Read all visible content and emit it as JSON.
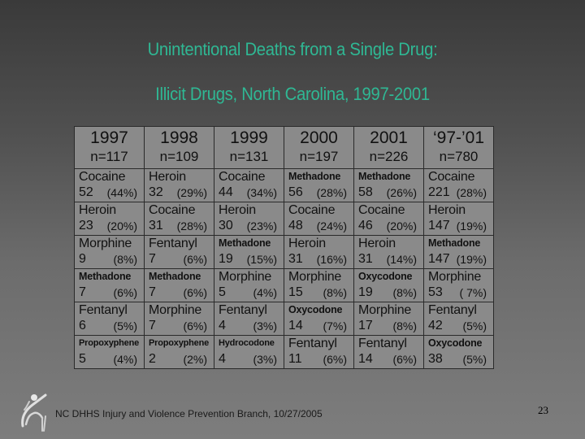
{
  "title": {
    "line1": "Unintentional Deaths from a Single Drug:",
    "line2": "Illicit Drugs, North Carolina, 1997-2001"
  },
  "colors": {
    "title": "#2fb894",
    "illicit_highlight": "#2222dd",
    "text": "#111111"
  },
  "table": {
    "columns": [
      {
        "year": "1997",
        "n": "n=117"
      },
      {
        "year": "1998",
        "n": "n=109"
      },
      {
        "year": "1999",
        "n": "n=131"
      },
      {
        "year": "2000",
        "n": "n=197"
      },
      {
        "year": "2001",
        "n": "n=226"
      },
      {
        "year": "‘97-’01",
        "n": "n=780"
      }
    ],
    "rows": [
      [
        {
          "drug": "Cocaine",
          "count": "52",
          "pct": "(44%)",
          "illicit": true
        },
        {
          "drug": "Heroin",
          "count": "32",
          "pct": "(29%)",
          "illicit": true
        },
        {
          "drug": "Cocaine",
          "count": "44",
          "pct": "(34%)",
          "illicit": true
        },
        {
          "drug": "Methadone",
          "count": "56",
          "pct": "(28%)",
          "illicit": false
        },
        {
          "drug": "Methadone",
          "count": "58",
          "pct": "(26%)",
          "illicit": false
        },
        {
          "drug": "Cocaine",
          "count": "221",
          "pct": "(28%)",
          "illicit": true
        }
      ],
      [
        {
          "drug": "Heroin",
          "count": "23",
          "pct": "(20%)",
          "illicit": true
        },
        {
          "drug": "Cocaine",
          "count": "31",
          "pct": "(28%)",
          "illicit": true
        },
        {
          "drug": "Heroin",
          "count": "30",
          "pct": "(23%)",
          "illicit": true
        },
        {
          "drug": "Cocaine",
          "count": "48",
          "pct": "(24%)",
          "illicit": true
        },
        {
          "drug": "Cocaine",
          "count": "46",
          "pct": "(20%)",
          "illicit": true
        },
        {
          "drug": "Heroin",
          "count": "147",
          "pct": "(19%)",
          "illicit": true
        }
      ],
      [
        {
          "drug": "Morphine",
          "count": "9",
          "pct": "(8%)",
          "illicit": false
        },
        {
          "drug": "Fentanyl",
          "count": "7",
          "pct": "(6%)",
          "illicit": false
        },
        {
          "drug": "Methadone",
          "count": "19",
          "pct": "(15%)",
          "illicit": false
        },
        {
          "drug": "Heroin",
          "count": "31",
          "pct": "(16%)",
          "illicit": true
        },
        {
          "drug": "Heroin",
          "count": "31",
          "pct": "(14%)",
          "illicit": true
        },
        {
          "drug": "Methadone",
          "count": "147",
          "pct": "(19%)",
          "illicit": false
        }
      ],
      [
        {
          "drug": "Methadone",
          "count": "7",
          "pct": "(6%)",
          "illicit": false
        },
        {
          "drug": "Methadone",
          "count": "7",
          "pct": "(6%)",
          "illicit": false
        },
        {
          "drug": "Morphine",
          "count": "5",
          "pct": "(4%)",
          "illicit": false
        },
        {
          "drug": "Morphine",
          "count": "15",
          "pct": "(8%)",
          "illicit": false
        },
        {
          "drug": "Oxycodone",
          "count": "19",
          "pct": "(8%)",
          "illicit": false
        },
        {
          "drug": "Morphine",
          "count": "53",
          "pct": "( 7%)",
          "illicit": false
        }
      ],
      [
        {
          "drug": "Fentanyl",
          "count": "6",
          "pct": "(5%)",
          "illicit": false
        },
        {
          "drug": "Morphine",
          "count": "7",
          "pct": "(6%)",
          "illicit": false
        },
        {
          "drug": "Fentanyl",
          "count": "4",
          "pct": "(3%)",
          "illicit": false
        },
        {
          "drug": "Oxycodone",
          "count": "14",
          "pct": "(7%)",
          "illicit": false
        },
        {
          "drug": "Morphine",
          "count": "17",
          "pct": "(8%)",
          "illicit": false
        },
        {
          "drug": "Fentanyl",
          "count": "42",
          "pct": "(5%)",
          "illicit": false
        }
      ],
      [
        {
          "drug": "Propoxyphene",
          "count": "5",
          "pct": "(4%)",
          "illicit": false
        },
        {
          "drug": "Propoxyphene",
          "count": "2",
          "pct": "(2%)",
          "illicit": false
        },
        {
          "drug": "Hydrocodone",
          "count": "4",
          "pct": "(3%)",
          "illicit": false
        },
        {
          "drug": "Fentanyl",
          "count": "11",
          "pct": "(6%)",
          "illicit": false
        },
        {
          "drug": "Fentanyl",
          "count": "14",
          "pct": "(6%)",
          "illicit": false
        },
        {
          "drug": "Oxycodone",
          "count": "38",
          "pct": "(5%)",
          "illicit": false
        }
      ]
    ]
  },
  "footer": {
    "logo_icon": "dancing-figure-logo-icon",
    "credit": "NC DHHS Injury and Violence Prevention Branch, 10/27/2005",
    "page_number": "23"
  }
}
